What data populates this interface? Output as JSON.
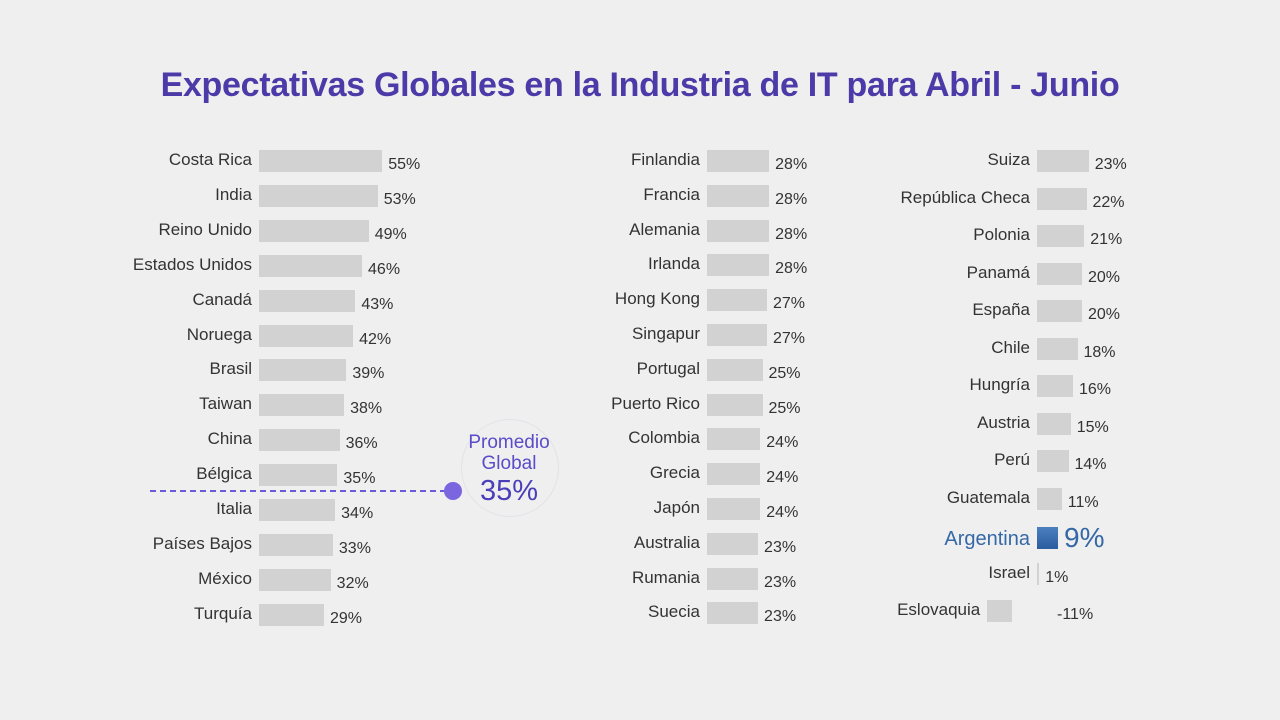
{
  "chart_data": {
    "type": "bar",
    "orientation": "horizontal",
    "title": "Expectativas Globales en la Industria de IT para Abril - Junio",
    "xlim": [
      -11,
      55
    ],
    "grid": false,
    "legend": "none",
    "colors": {
      "title": "#4b3aa8",
      "bar": "#d2d2d2",
      "highlight_bar_top": "#4a7fc0",
      "highlight_bar_bottom": "#2c5d9e",
      "highlight_text": "#3568a6",
      "average": "#6b5ad9"
    },
    "columns": [
      {
        "categories": [
          "Costa Rica",
          "India",
          "Reino Unido",
          "Estados Unidos",
          "Canadá",
          "Noruega",
          "Brasil",
          "Taiwan",
          "China",
          "Bélgica",
          "Italia",
          "Países Bajos",
          "México",
          "Turquía"
        ],
        "values": [
          55,
          53,
          49,
          46,
          43,
          42,
          39,
          38,
          36,
          35,
          34,
          33,
          32,
          29
        ],
        "labels": [
          "55%",
          "53%",
          "49%",
          "46%",
          "43%",
          "42%",
          "39%",
          "38%",
          "36%",
          "35%",
          "34%",
          "33%",
          "32%",
          "29%"
        ]
      },
      {
        "categories": [
          "Finlandia",
          "Francia",
          "Alemania",
          "Irlanda",
          "Hong Kong",
          "Singapur",
          "Portugal",
          "Puerto Rico",
          "Colombia",
          "Grecia",
          "Japón",
          "Australia",
          "Rumania",
          "Suecia"
        ],
        "values": [
          28,
          28,
          28,
          28,
          27,
          27,
          25,
          25,
          24,
          24,
          24,
          23,
          23,
          23
        ],
        "labels": [
          "28%",
          "28%",
          "28%",
          "28%",
          "27%",
          "27%",
          "25%",
          "25%",
          "24%",
          "24%",
          "24%",
          "23%",
          "23%",
          "23%"
        ]
      },
      {
        "categories": [
          "Suiza",
          "República Checa",
          "Polonia",
          "Panamá",
          "España",
          "Chile",
          "Hungría",
          "Austria",
          "Perú",
          "Guatemala",
          "Argentina",
          "Israel",
          "Eslovaquia"
        ],
        "values": [
          23,
          22,
          21,
          20,
          20,
          18,
          16,
          15,
          14,
          11,
          9,
          1,
          -11
        ],
        "labels": [
          "23%",
          "22%",
          "21%",
          "20%",
          "20%",
          "18%",
          "16%",
          "15%",
          "14%",
          "11%",
          "9%",
          "1%",
          "-11%"
        ]
      }
    ],
    "highlight": "Argentina",
    "average": {
      "label": "Promedio Global",
      "value": 35,
      "value_label": "35%"
    }
  }
}
